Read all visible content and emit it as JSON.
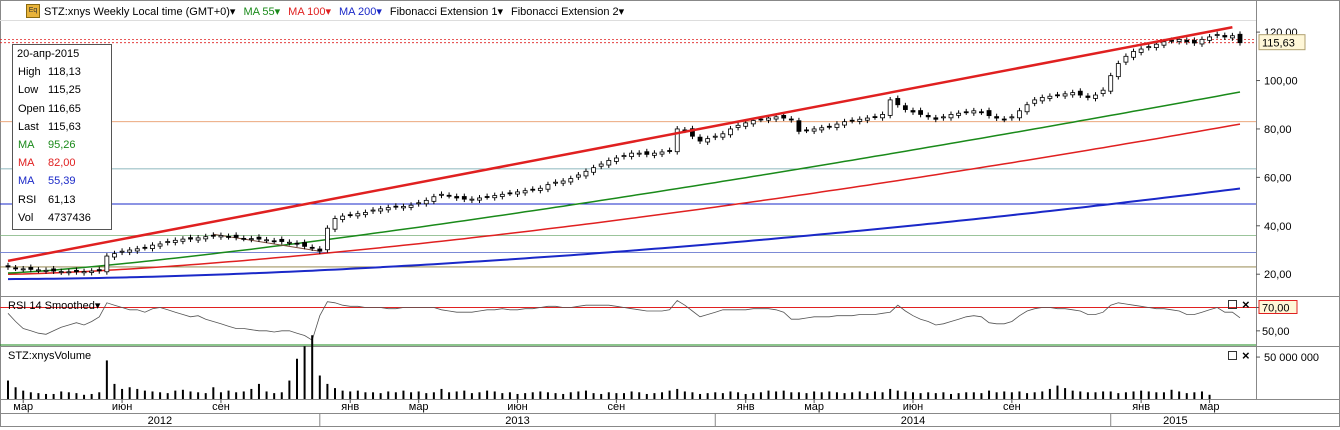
{
  "header": {
    "logo_text": "Eq",
    "title": "STZ:xnys Weekly Local time (GMT+0)",
    "studies": [
      {
        "label": "MA 55",
        "color": "#1a8a1a"
      },
      {
        "label": "MA 100",
        "color": "#e02020"
      },
      {
        "label": "MA 200",
        "color": "#1a28c8"
      },
      {
        "label": "Fibonacci Extension 1",
        "color": "#000000"
      },
      {
        "label": "Fibonacci Extension 2",
        "color": "#000000"
      }
    ],
    "dropdown_glyph": "▾"
  },
  "info_box": {
    "date": "20-апр-2015",
    "rows": [
      {
        "key": "High",
        "value": "118,13",
        "color": "#000000"
      },
      {
        "key": "Low",
        "value": "115,25",
        "color": "#000000"
      },
      {
        "key": "Open",
        "value": "116,65",
        "color": "#000000"
      },
      {
        "key": "Last",
        "value": "115,63",
        "color": "#000000"
      },
      {
        "key": "MA",
        "value": "95,26",
        "color": "#1a8a1a"
      },
      {
        "key": "MA",
        "value": "82,00",
        "color": "#e02020"
      },
      {
        "key": "MA",
        "value": "55,39",
        "color": "#1a28c8"
      },
      {
        "key": "RSI",
        "value": "61,13",
        "color": "#000000"
      },
      {
        "key": "Vol",
        "value": "4737436",
        "color": "#000000"
      }
    ]
  },
  "price_axis": {
    "ticks": [
      "120,00",
      "100,00",
      "80,00",
      "60,00",
      "40,00",
      "20,00"
    ],
    "tick_values": [
      120,
      100,
      80,
      60,
      40,
      20
    ],
    "ylim": [
      11,
      125
    ],
    "last_label": "115,63",
    "last_value": 115.63
  },
  "rsi_pane": {
    "title": "RSI 14 Smoothed",
    "ticks": [
      "70,00",
      "50,00"
    ],
    "tick_values": [
      70,
      50
    ],
    "ylim": [
      37,
      79
    ],
    "levels": [
      70,
      30
    ]
  },
  "volume_pane": {
    "title": "STZ:xnysVolume",
    "ticks": [
      "50 000 000"
    ],
    "tick_values": [
      50000000
    ],
    "ylim": [
      0,
      62000000
    ]
  },
  "time_axis": {
    "months": [
      {
        "label": "мар",
        "week": 2
      },
      {
        "label": "июн",
        "week": 15
      },
      {
        "label": "сен",
        "week": 28
      },
      {
        "label": "янв",
        "week": 45
      },
      {
        "label": "мар",
        "week": 54
      },
      {
        "label": "июн",
        "week": 67
      },
      {
        "label": "сен",
        "week": 80
      },
      {
        "label": "янв",
        "week": 97
      },
      {
        "label": "мар",
        "week": 106
      },
      {
        "label": "июн",
        "week": 119
      },
      {
        "label": "сен",
        "week": 132
      },
      {
        "label": "янв",
        "week": 149
      },
      {
        "label": "мар",
        "week": 158
      }
    ],
    "years": [
      {
        "label": "2012",
        "start_week": 0,
        "end_week": 41
      },
      {
        "label": "2013",
        "start_week": 41,
        "end_week": 93
      },
      {
        "label": "2014",
        "start_week": 93,
        "end_week": 145
      },
      {
        "label": "2015",
        "start_week": 145,
        "end_week": 162
      }
    ]
  },
  "chart_data": {
    "type": "candlestick",
    "interval": "weekly",
    "first_week": "2012-02-20",
    "last_week": "2015-04-20",
    "close": [
      23,
      22.5,
      22.2,
      22,
      21.8,
      21.6,
      21.3,
      21.1,
      21,
      21,
      21.1,
      21.3,
      21.4,
      27.5,
      28.5,
      29.5,
      30,
      30.5,
      31,
      32,
      32.5,
      33.5,
      34,
      34.5,
      34.5,
      35,
      35.5,
      35.8,
      36,
      35.5,
      35.2,
      34.8,
      34.7,
      34.5,
      34.2,
      33.8,
      33.5,
      33.2,
      32.5,
      31.5,
      30.8,
      29.5,
      39,
      43,
      44,
      44.5,
      45,
      45.5,
      46.5,
      47,
      47.5,
      47.8,
      48,
      48.5,
      49.5,
      50.5,
      52,
      53,
      52.5,
      51.5,
      51,
      51,
      51.5,
      52,
      52.5,
      53,
      53.5,
      54,
      54.5,
      55,
      55.5,
      57,
      58,
      58.5,
      59.5,
      61,
      62.5,
      64,
      65.5,
      67,
      68,
      69,
      70,
      70,
      69.5,
      70,
      70.5,
      71,
      80,
      79.5,
      77,
      75,
      76,
      77,
      78,
      80,
      81.5,
      82.5,
      83.5,
      84,
      84.5,
      85,
      84.5,
      83.8,
      79,
      79.5,
      80,
      80.5,
      81,
      82,
      83,
      83.5,
      84,
      84.5,
      85,
      86,
      92,
      90,
      88,
      87,
      86,
      85,
      84,
      85,
      86,
      86.5,
      87,
      87.5,
      87,
      85.5,
      84.5,
      84,
      85,
      87.5,
      90,
      92,
      93,
      93.5,
      94,
      94.5,
      95,
      94,
      93,
      94,
      96,
      102,
      107,
      110,
      112,
      113,
      114,
      115,
      116,
      116.5,
      117,
      116,
      115.5,
      117,
      118,
      119,
      118,
      118.5,
      115.63
    ],
    "ohlc_note": "values read from chart, approximate",
    "ma55_start": 20.5,
    "ma55_end": 95.26,
    "ma100_start": 20.0,
    "ma100_end": 82.0,
    "ma200_start": 18.0,
    "ma200_end": 55.39,
    "rsi": [
      65,
      58,
      52,
      50,
      48,
      47,
      50,
      53,
      55,
      57,
      55,
      58,
      62,
      74,
      72,
      70,
      68,
      68,
      66,
      69,
      70,
      68,
      66,
      64,
      62,
      63,
      60,
      58,
      56,
      54,
      52,
      52,
      51,
      50,
      50,
      49,
      50,
      50,
      48,
      46,
      42,
      63,
      75,
      74,
      72,
      71,
      71,
      70,
      70,
      70,
      69,
      69,
      70,
      70,
      70,
      70,
      70,
      68,
      67,
      66,
      66,
      66,
      67,
      68,
      68,
      69,
      68,
      68,
      69,
      69,
      70,
      71,
      71,
      70,
      70,
      71,
      72,
      72,
      72,
      72,
      71,
      70,
      69,
      68,
      67,
      67,
      67,
      68,
      76,
      72,
      67,
      62,
      64,
      66,
      68,
      68,
      68,
      68,
      69,
      69,
      69,
      68,
      66,
      60,
      60,
      61,
      62,
      62,
      62,
      63,
      63,
      63,
      64,
      64,
      64,
      65,
      66,
      72,
      67,
      63,
      60,
      58,
      55,
      56,
      58,
      60,
      62,
      63,
      62,
      57,
      56,
      56,
      58,
      63,
      67,
      69,
      70,
      70,
      69,
      69,
      68,
      67,
      64,
      64,
      66,
      72,
      74,
      73,
      72,
      71,
      70,
      69,
      69,
      68,
      67,
      64,
      64,
      66,
      68,
      70,
      66,
      66,
      61.13
    ],
    "volume_millions": [
      22,
      14,
      10,
      8,
      7,
      6,
      6,
      9,
      8,
      7,
      5,
      6,
      8,
      46,
      18,
      12,
      14,
      12,
      10,
      9,
      8,
      7,
      10,
      11,
      9,
      8,
      7,
      14,
      8,
      10,
      8,
      9,
      12,
      18,
      9,
      7,
      8,
      22,
      48,
      63,
      76,
      28,
      18,
      13,
      10,
      9,
      10,
      8,
      8,
      7,
      9,
      8,
      10,
      8,
      9,
      7,
      8,
      12,
      8,
      9,
      10,
      7,
      8,
      10,
      9,
      7,
      8,
      6,
      7,
      8,
      9,
      8,
      7,
      6,
      8,
      9,
      10,
      7,
      6,
      8,
      7,
      7,
      9,
      8,
      6,
      7,
      8,
      10,
      12,
      9,
      8,
      6,
      7,
      8,
      7,
      9,
      8,
      6,
      7,
      8,
      10,
      9,
      10,
      8,
      8,
      7,
      9,
      8,
      9,
      8,
      7,
      8,
      9,
      7,
      9,
      8,
      12,
      10,
      9,
      8,
      7,
      8,
      7,
      8,
      6,
      7,
      8,
      8,
      7,
      10,
      8,
      9,
      8,
      9,
      7,
      8,
      9,
      12,
      16,
      13,
      10,
      9,
      8,
      8,
      9,
      9,
      7,
      8,
      9,
      10,
      9,
      8,
      8,
      11,
      9,
      7,
      8,
      9,
      5
    ],
    "fibonacci_trendline": {
      "start": {
        "week": 0,
        "value": 25.5
      },
      "end": {
        "week": 161,
        "value": 122
      }
    },
    "horizontal_levels": [
      117,
      115.63,
      83,
      63.5,
      49,
      36,
      29,
      23
    ],
    "secondary_line": {
      "start": {
        "week": 27,
        "value": 36.5
      },
      "end": {
        "week": 41,
        "value": 29.5
      }
    }
  }
}
